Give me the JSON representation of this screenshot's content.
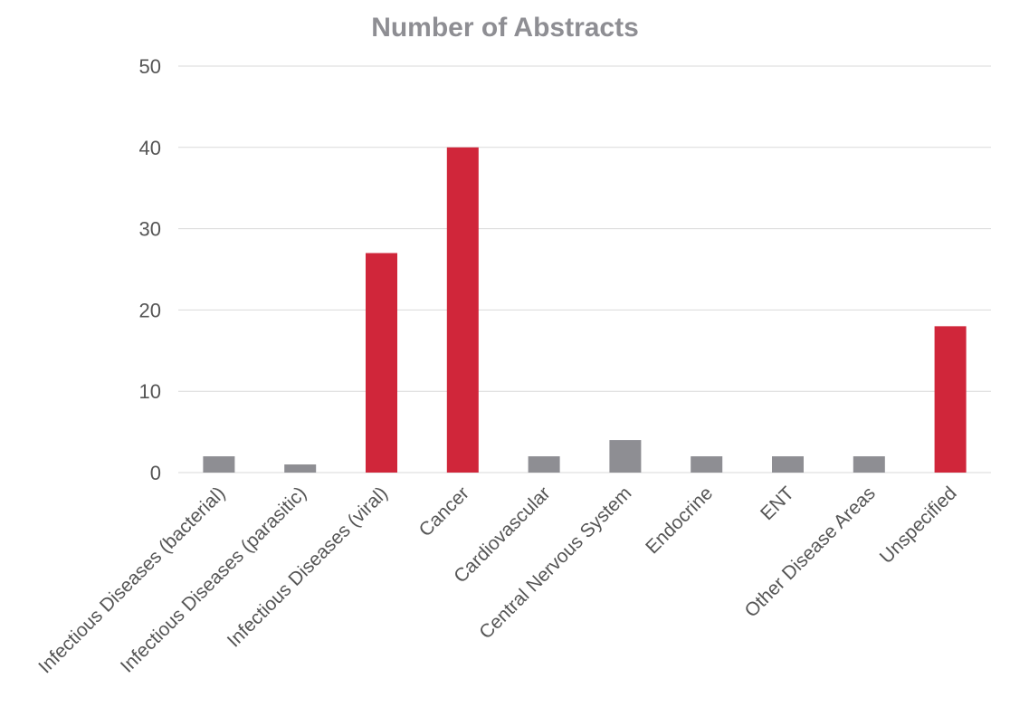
{
  "chart_data": {
    "type": "bar",
    "title": "Number of Abstracts",
    "xlabel": "",
    "ylabel": "",
    "ylim": [
      0,
      50
    ],
    "yticks": [
      0,
      10,
      20,
      30,
      40,
      50
    ],
    "grid": true,
    "legend": "none",
    "categories": [
      "Infectious Diseases (bacterial)",
      "Infectious Diseases (parasitic)",
      "Infectious Diseases (viral)",
      "Cancer",
      "Cardiovascular",
      "Central Nervous System",
      "Endocrine",
      "ENT",
      "Other Disease Areas",
      "Unspecified"
    ],
    "values": [
      2,
      1,
      27,
      40,
      2,
      4,
      2,
      2,
      2,
      18
    ],
    "colors": [
      "#8e8e93",
      "#8e8e93",
      "#d0263a",
      "#d0263a",
      "#8e8e93",
      "#8e8e93",
      "#8e8e93",
      "#8e8e93",
      "#8e8e93",
      "#d0263a"
    ]
  }
}
